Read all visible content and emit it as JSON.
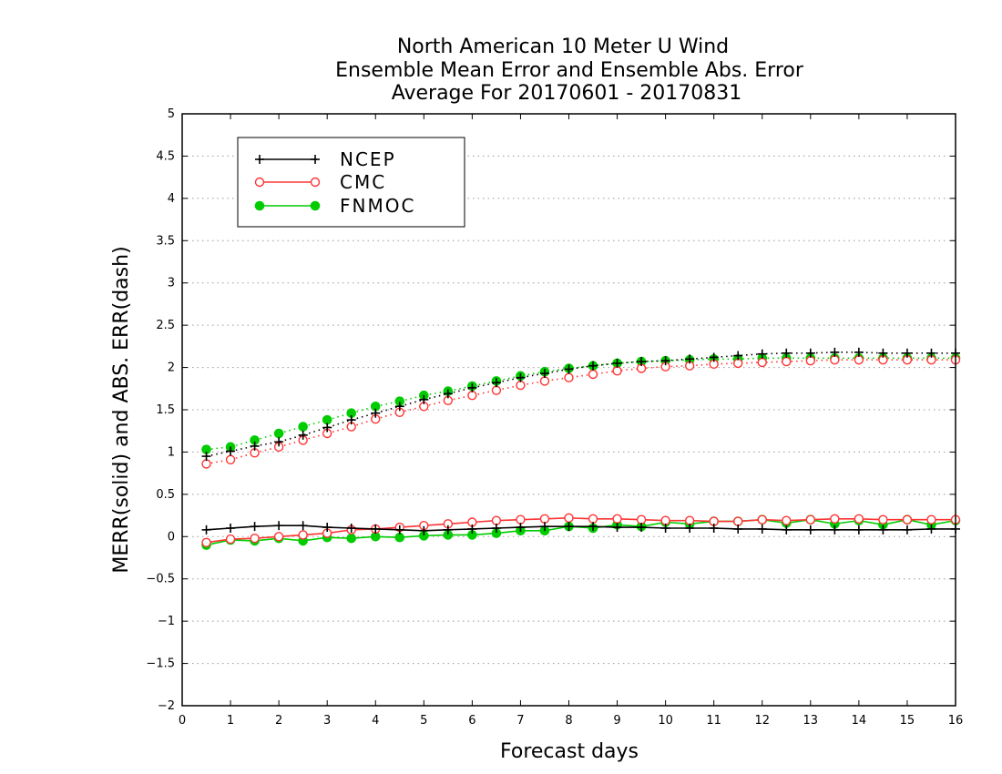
{
  "chart_data": {
    "type": "line",
    "title": [
      "North American 10 Meter U Wind",
      "Ensemble Mean Error and Ensemble Abs. Error",
      "Average For 20170601 - 20170831"
    ],
    "xlabel": "Forecast days",
    "ylabel": "MERR(solid) and ABS. ERR(dash)",
    "xlim": [
      0,
      16
    ],
    "ylim": [
      -2,
      5
    ],
    "xticks": [
      0,
      1,
      2,
      3,
      4,
      5,
      6,
      7,
      8,
      9,
      10,
      11,
      12,
      13,
      14,
      15,
      16
    ],
    "yticks": [
      -2,
      -1.5,
      -1,
      -0.5,
      0,
      0.5,
      1,
      1.5,
      2,
      2.5,
      3,
      3.5,
      4,
      4.5,
      5
    ],
    "ytick_labels": [
      "−2",
      "−1.5",
      "−1",
      "−0.5",
      "0",
      "0.5",
      "1",
      "1.5",
      "2",
      "2.5",
      "3",
      "3.5",
      "4",
      "4.5",
      "5"
    ],
    "grid": "horizontal dotted",
    "legend_position": "top-left",
    "x": [
      0.5,
      1,
      1.5,
      2,
      2.5,
      3,
      3.5,
      4,
      4.5,
      5,
      5.5,
      6,
      6.5,
      7,
      7.5,
      8,
      8.5,
      9,
      9.5,
      10,
      10.5,
      11,
      11.5,
      12,
      12.5,
      13,
      13.5,
      14,
      14.5,
      15,
      15.5,
      16
    ],
    "series": [
      {
        "name": "NCEP",
        "color": "#000000",
        "marker": "plus",
        "merr": [
          0.08,
          0.1,
          0.12,
          0.13,
          0.13,
          0.11,
          0.1,
          0.09,
          0.08,
          0.07,
          0.08,
          0.09,
          0.1,
          0.11,
          0.12,
          0.12,
          0.12,
          0.11,
          0.11,
          0.1,
          0.1,
          0.1,
          0.09,
          0.09,
          0.08,
          0.08,
          0.08,
          0.08,
          0.08,
          0.08,
          0.09,
          0.09
        ],
        "abserr": [
          0.95,
          1.01,
          1.07,
          1.12,
          1.2,
          1.29,
          1.38,
          1.46,
          1.54,
          1.62,
          1.69,
          1.76,
          1.82,
          1.88,
          1.93,
          1.98,
          2.02,
          2.05,
          2.07,
          2.08,
          2.1,
          2.12,
          2.14,
          2.16,
          2.17,
          2.17,
          2.18,
          2.18,
          2.17,
          2.17,
          2.17,
          2.17
        ]
      },
      {
        "name": "CMC",
        "color": "#ff3333",
        "marker": "open-circle",
        "merr": [
          -0.07,
          -0.03,
          -0.02,
          0.0,
          0.02,
          0.04,
          0.08,
          0.09,
          0.11,
          0.13,
          0.15,
          0.17,
          0.19,
          0.2,
          0.21,
          0.22,
          0.21,
          0.21,
          0.2,
          0.19,
          0.19,
          0.18,
          0.18,
          0.2,
          0.19,
          0.2,
          0.21,
          0.21,
          0.2,
          0.2,
          0.2,
          0.2
        ],
        "abserr": [
          0.86,
          0.91,
          0.99,
          1.06,
          1.14,
          1.22,
          1.3,
          1.39,
          1.47,
          1.54,
          1.61,
          1.67,
          1.73,
          1.79,
          1.84,
          1.88,
          1.92,
          1.96,
          1.99,
          2.01,
          2.02,
          2.04,
          2.05,
          2.06,
          2.07,
          2.08,
          2.09,
          2.09,
          2.09,
          2.09,
          2.09,
          2.09
        ]
      },
      {
        "name": "FNMOC",
        "color": "#00cc00",
        "marker": "filled-circle",
        "merr": [
          -0.1,
          -0.04,
          -0.05,
          -0.02,
          -0.05,
          -0.01,
          -0.02,
          0.0,
          -0.01,
          0.01,
          0.02,
          0.02,
          0.04,
          0.07,
          0.07,
          0.12,
          0.1,
          0.14,
          0.12,
          0.17,
          0.15,
          0.18,
          0.18,
          0.2,
          0.16,
          0.2,
          0.15,
          0.19,
          0.14,
          0.2,
          0.14,
          0.19
        ],
        "abserr": [
          1.03,
          1.06,
          1.14,
          1.22,
          1.3,
          1.38,
          1.46,
          1.54,
          1.6,
          1.67,
          1.72,
          1.78,
          1.84,
          1.9,
          1.95,
          1.99,
          2.02,
          2.05,
          2.07,
          2.08,
          2.09,
          2.1,
          2.1,
          2.11,
          2.11,
          2.11,
          2.11,
          2.11,
          2.11,
          2.11,
          2.11,
          2.11
        ]
      }
    ]
  }
}
